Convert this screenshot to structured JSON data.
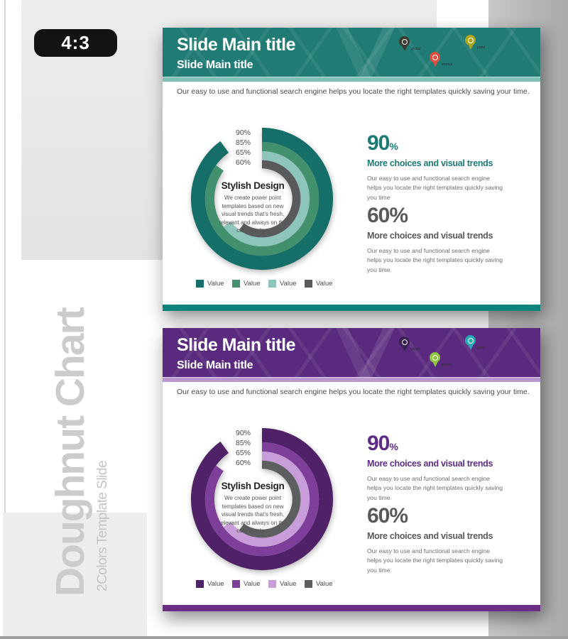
{
  "page": {
    "ratio_badge": "4:3",
    "side_title": "Doughnut Chart",
    "side_subtitle": "2Colors Template Slide",
    "colors": {
      "panel_gray": "#e9e9e9",
      "right_column_gray": "#b2b2b2",
      "badge_bg": "#131313"
    }
  },
  "slides": [
    {
      "name": "teal-slide",
      "title": "Slide Main title",
      "subtitle": "Slide Main title",
      "intro": "Our easy to use and functional search engine helps you locate the right templates quickly  saving your time.",
      "theme": {
        "header_bg": "#1F7B74",
        "strip": "#7FC0B6",
        "bar": "#0A837C",
        "accent": "#1B7A74",
        "muted": "#58595B",
        "ring_colors": [
          "#156E67",
          "#43906E",
          "#8DC5BA",
          "#595A5C"
        ]
      },
      "pins": [
        {
          "label": "global",
          "color": "#3B3B30"
        },
        {
          "label": "money",
          "color": "#DF4F41"
        },
        {
          "label": "point",
          "color": "#B0A51F"
        }
      ],
      "chart": {
        "labels": [
          "90%",
          "85%",
          "65%",
          "60%"
        ],
        "values": [
          90,
          85,
          65,
          60
        ],
        "center_title": "Stylish Design",
        "center_text": "We create power point templates based on new visual trends that's fresh, relevant and always on the cutting edge.",
        "legend": [
          "Value",
          "Value",
          "Value",
          "Value"
        ]
      },
      "stats": [
        {
          "value": "90",
          "unit": "%",
          "headline": "More choices and visual trends",
          "body": "Our easy to use and functional search engine helps you locate the right templates quickly saving you time"
        },
        {
          "value": "60",
          "unit": "%",
          "headline": "More choices and visual trends",
          "body": "Our easy to use and functional search engine helps you locate the right templates quickly saving you time"
        }
      ]
    },
    {
      "name": "purple-slide",
      "title": "Slide Main title",
      "subtitle": "Slide Main title",
      "intro": "Our easy to use and functional search engine helps you locate the right templates quickly  saving your time.",
      "theme": {
        "header_bg": "#592A7D",
        "strip": "#BB99CE",
        "bar": "#6B2D85",
        "accent": "#5E2C85",
        "muted": "#58595B",
        "ring_colors": [
          "#4F2166",
          "#7E3F9B",
          "#C79ED9",
          "#5D5E60"
        ]
      },
      "pins": [
        {
          "label": "global",
          "color": "#3A1F52"
        },
        {
          "label": "money",
          "color": "#8DC63F"
        },
        {
          "label": "point",
          "color": "#2AA7B5"
        }
      ],
      "chart": {
        "labels": [
          "90%",
          "85%",
          "65%",
          "60%"
        ],
        "values": [
          90,
          85,
          65,
          60
        ],
        "center_title": "Stylish Design",
        "center_text": "We create power point templates based on new visual trends that's fresh, relevant and always on the cutting edge.",
        "legend": [
          "Value",
          "Value",
          "Value",
          "Value"
        ]
      },
      "stats": [
        {
          "value": "90",
          "unit": "%",
          "headline": "More choices and visual trends",
          "body": "Our easy to use and functional search engine helps you locate the right templates quickly saving you time"
        },
        {
          "value": "60",
          "unit": "%",
          "headline": "More choices and visual trends",
          "body": "Our easy to use and functional search engine helps you locate the right templates quickly saving you time"
        }
      ]
    }
  ],
  "chart_data": [
    {
      "type": "doughnut",
      "title": "Stylish Design",
      "center_text": "We create power point templates based on new visual trends that's fresh, relevant and always on the cutting edge.",
      "series": [
        {
          "name": "Value",
          "value": 90,
          "color": "#156E67"
        },
        {
          "name": "Value",
          "value": 85,
          "color": "#43906E"
        },
        {
          "name": "Value",
          "value": 65,
          "color": "#8DC5BA"
        },
        {
          "name": "Value",
          "value": 60,
          "color": "#595A5C"
        }
      ],
      "ring_value_labels": [
        "90%",
        "85%",
        "65%",
        "60%"
      ],
      "start_angle": "12 o'clock",
      "direction": "clockwise",
      "legend_position": "bottom",
      "callouts": [
        {
          "value": "90%",
          "headline": "More choices and visual trends"
        },
        {
          "value": "60%",
          "headline": "More choices and visual trends"
        }
      ]
    },
    {
      "type": "doughnut",
      "title": "Stylish Design",
      "center_text": "We create power point templates based on new visual trends that's fresh, relevant and always on the cutting edge.",
      "series": [
        {
          "name": "Value",
          "value": 90,
          "color": "#4F2166"
        },
        {
          "name": "Value",
          "value": 85,
          "color": "#7E3F9B"
        },
        {
          "name": "Value",
          "value": 65,
          "color": "#C79ED9"
        },
        {
          "name": "Value",
          "value": 60,
          "color": "#5D5E60"
        }
      ],
      "ring_value_labels": [
        "90%",
        "85%",
        "65%",
        "60%"
      ],
      "start_angle": "12 o'clock",
      "direction": "clockwise",
      "legend_position": "bottom",
      "callouts": [
        {
          "value": "90%",
          "headline": "More choices and visual trends"
        },
        {
          "value": "60%",
          "headline": "More choices and visual trends"
        }
      ]
    }
  ]
}
